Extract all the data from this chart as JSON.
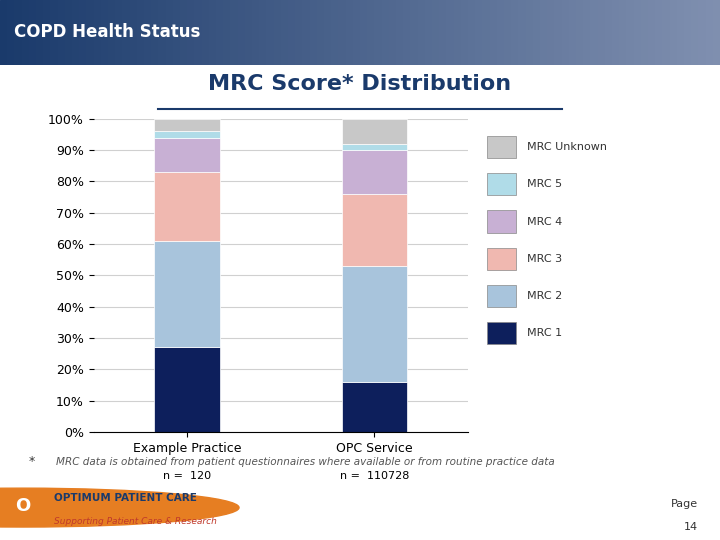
{
  "title": "MRC Score* Distribution",
  "header": "COPD Health Status",
  "categories": [
    "Example Practice",
    "OPC Service"
  ],
  "n_labels": [
    "n =  120",
    "n =  110728"
  ],
  "series": [
    {
      "label": "MRC 1",
      "values": [
        27,
        16
      ],
      "color": "#0d1f5c"
    },
    {
      "label": "MRC 2",
      "values": [
        34,
        37
      ],
      "color": "#a8c4dc"
    },
    {
      "label": "MRC 3",
      "values": [
        22,
        23
      ],
      "color": "#f0b8b0"
    },
    {
      "label": "MRC 4",
      "values": [
        11,
        14
      ],
      "color": "#c8b0d4"
    },
    {
      "label": "MRC 5",
      "values": [
        2,
        2
      ],
      "color": "#b0dce8"
    },
    {
      "label": "MRC Unknown",
      "values": [
        4,
        8
      ],
      "color": "#c8c8c8"
    }
  ],
  "footer_star": "*",
  "footer_text": "MRC data is obtained from patient questionnaires where available or from routine practice data",
  "page_text": "Page\n14",
  "header_bg_left": "#1a3a6b",
  "header_bg_right": "#8090b0",
  "bar_width": 0.35,
  "ylim": [
    0,
    100
  ],
  "yticks": [
    0,
    10,
    20,
    30,
    40,
    50,
    60,
    70,
    80,
    90,
    100
  ],
  "ytick_labels": [
    "0%",
    "10%",
    "20%",
    "30%",
    "40%",
    "50%",
    "60%",
    "70%",
    "80%",
    "90%",
    "100%"
  ],
  "grid_color": "#d0d0d0",
  "legend_fontsize": 8,
  "axis_fontsize": 9,
  "title_fontsize": 16,
  "title_color": "#1a3a6b",
  "bg_color": "#ffffff"
}
